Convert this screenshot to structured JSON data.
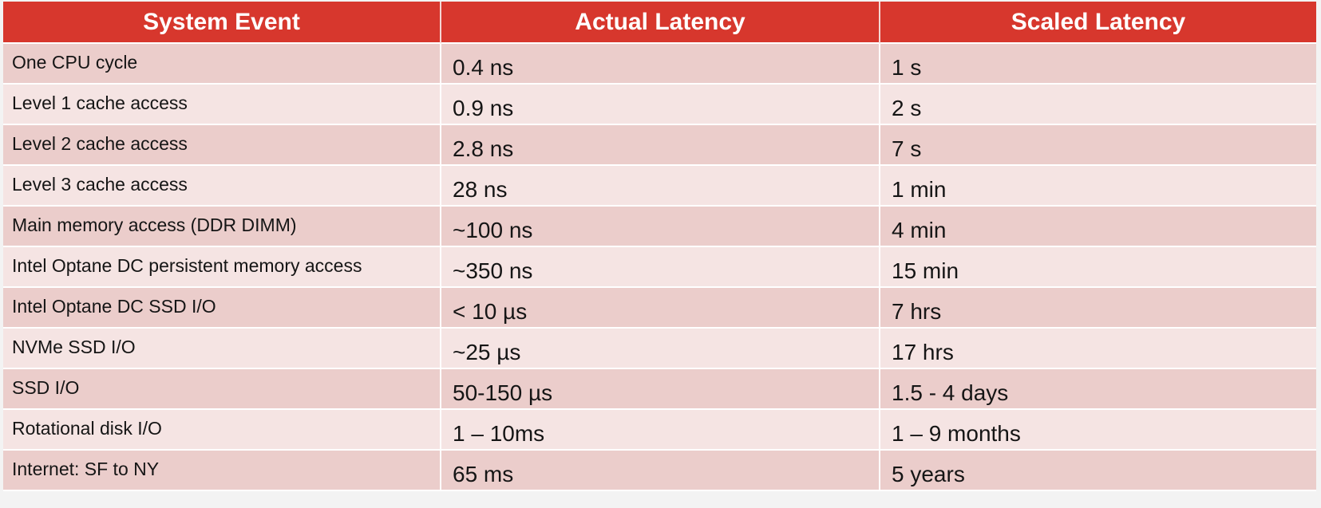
{
  "table": {
    "headers": [
      "System Event",
      "Actual Latency",
      "Scaled Latency"
    ],
    "rows": [
      {
        "event": "One CPU cycle",
        "actual": "0.4 ns",
        "scaled": "1 s"
      },
      {
        "event": "Level 1 cache access",
        "actual": "0.9 ns",
        "scaled": "2 s"
      },
      {
        "event": "Level 2 cache access",
        "actual": "2.8 ns",
        "scaled": "7 s"
      },
      {
        "event": "Level 3 cache access",
        "actual": "28 ns",
        "scaled": "1 min"
      },
      {
        "event": "Main memory access (DDR DIMM)",
        "actual": "~100 ns",
        "scaled": "4 min"
      },
      {
        "event": "Intel Optane DC persistent memory access",
        "actual": "~350 ns",
        "scaled": "15 min"
      },
      {
        "event": "Intel Optane DC SSD I/O",
        "actual": "< 10 µs",
        "scaled": "7 hrs"
      },
      {
        "event": "NVMe SSD I/O",
        "actual": "~25 µs",
        "scaled": "17 hrs"
      },
      {
        "event": "SSD I/O",
        "actual": "50-150 µs",
        "scaled": "1.5 - 4 days"
      },
      {
        "event": "Rotational disk I/O",
        "actual": "1 – 10ms",
        "scaled": "1 – 9 months"
      },
      {
        "event": "Internet: SF to NY",
        "actual": "65 ms",
        "scaled": "5 years"
      }
    ]
  },
  "colors": {
    "header_bg": "#d7372d",
    "row_dark": "#ebcdcb",
    "row_light": "#f5e4e3"
  }
}
